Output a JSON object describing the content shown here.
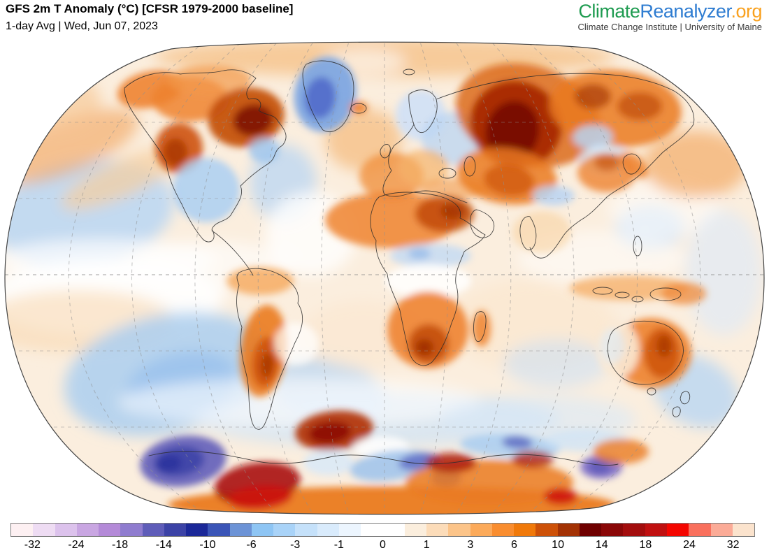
{
  "header": {
    "title": "GFS 2m T Anomaly (°C) [CFSR 1979-2000 baseline]",
    "subtitle": "1-day Avg | Wed, Jun 07, 2023"
  },
  "logo": {
    "part1": "Climate",
    "part2": "Reanalyzer",
    "part3": ".org",
    "tagline": "Climate Change Institute | University of Maine",
    "colors": {
      "part1": "#1e9b50",
      "part2": "#2e7cd1",
      "part3": "#f9a11f"
    }
  },
  "colorbar": {
    "unit": "°C",
    "ticks": [
      "-32",
      "-24",
      "-18",
      "-14",
      "-10",
      "-6",
      "-3",
      "-1",
      "0",
      "1",
      "3",
      "6",
      "10",
      "14",
      "18",
      "24",
      "32"
    ],
    "segments": [
      "#fdf0f2",
      "#eedcf3",
      "#dcc2ec",
      "#c9a6e2",
      "#b48ad8",
      "#8f7ccf",
      "#5f5db9",
      "#3c43a6",
      "#1b2898",
      "#3b55b7",
      "#6c93d6",
      "#8ec5f4",
      "#a9d3f8",
      "#c5e1fa",
      "#d9ebfc",
      "#ecf5fe",
      "#ffffff",
      "#ffffff",
      "#fbeedd",
      "#fcdcb9",
      "#fcc489",
      "#fcaa5a",
      "#f98d2f",
      "#f0790a",
      "#cd5108",
      "#a33204",
      "#6f0000",
      "#8a0707",
      "#a30d0d",
      "#c01010",
      "#f40600",
      "#f9705d",
      "#fbab97",
      "#fbe3cd"
    ],
    "border_color": "#7d7d7d"
  },
  "map": {
    "base_color": "#fbeede",
    "grid_color": "#8f8f8f",
    "coastline_color": "#2b2b2b",
    "outline_color": "#444444",
    "anomaly_blobs": [
      [
        120,
        305,
        130,
        75,
        -10,
        "#b9d6f3",
        0.85,
        "b"
      ],
      [
        95,
        210,
        110,
        38,
        -22,
        "#f2a45c",
        0.6,
        "b"
      ],
      [
        175,
        255,
        95,
        26,
        -24,
        "#f7cf9e",
        0.7,
        "b"
      ],
      [
        60,
        145,
        85,
        45,
        0,
        "#f6c490",
        0.6,
        "b"
      ],
      [
        150,
        425,
        170,
        55,
        0,
        "#ffffff",
        0.9,
        "b"
      ],
      [
        110,
        460,
        140,
        45,
        0,
        "#f8d9b2",
        0.6,
        "b"
      ],
      [
        150,
        372,
        160,
        30,
        0,
        "#ffffff",
        0.7,
        "b"
      ],
      [
        240,
        535,
        150,
        85,
        -12,
        "#abcff0",
        0.85,
        "b"
      ],
      [
        260,
        550,
        80,
        45,
        -12,
        "#8fbbec",
        0.6,
        "b"
      ],
      [
        405,
        262,
        48,
        55,
        0,
        "#b9d6f3",
        0.75,
        "b"
      ],
      [
        445,
        335,
        65,
        60,
        0,
        "#ffffff",
        0.8,
        "b"
      ],
      [
        300,
        380,
        120,
        35,
        0,
        "#ffffff",
        0.6,
        "b"
      ],
      [
        470,
        560,
        85,
        45,
        12,
        "#b5d4f1",
        0.75,
        "b"
      ],
      [
        540,
        600,
        260,
        40,
        0,
        "#cde3f7",
        0.7,
        "b"
      ],
      [
        430,
        575,
        260,
        35,
        0,
        "#ffffff",
        0.6,
        "b"
      ],
      [
        770,
        600,
        140,
        35,
        0,
        "#d8e9f9",
        0.6,
        "b"
      ],
      [
        760,
        465,
        120,
        65,
        0,
        "#fbe6cc",
        0.6,
        "b"
      ],
      [
        795,
        520,
        75,
        35,
        0,
        "#cae0f6",
        0.55,
        "b"
      ],
      [
        930,
        325,
        50,
        32,
        0,
        "#c8def5",
        0.75,
        "b"
      ],
      [
        860,
        370,
        120,
        40,
        0,
        "#ffffff",
        0.5,
        "b"
      ],
      [
        950,
        300,
        80,
        40,
        0,
        "#ffffff",
        0.5,
        "b"
      ],
      [
        995,
        560,
        65,
        48,
        28,
        "#b9d6f3",
        0.8,
        "b"
      ],
      [
        995,
        235,
        75,
        48,
        0,
        "#f3a65c",
        0.65,
        "b"
      ],
      [
        550,
        82,
        330,
        28,
        0,
        "#f5bc7d",
        0.7,
        "b"
      ],
      [
        520,
        88,
        60,
        18,
        0,
        "#ffffff",
        0.6,
        "b"
      ],
      [
        520,
        200,
        55,
        45,
        0,
        "#f4b06a",
        0.6,
        "b"
      ],
      [
        1035,
        390,
        55,
        90,
        0,
        "#dce9fa",
        0.6,
        "b"
      ],
      [
        520,
        480,
        90,
        50,
        0,
        "#fbe6cc",
        0.5,
        "b"
      ],
      [
        215,
        128,
        48,
        26,
        -12,
        "#ee8330",
        0.9,
        "s"
      ],
      [
        272,
        142,
        55,
        32,
        0,
        "#ee8330",
        0.85,
        "s"
      ],
      [
        300,
        115,
        60,
        22,
        0,
        "#f2994a",
        0.7,
        "s"
      ],
      [
        352,
        168,
        55,
        42,
        -10,
        "#c24a05",
        0.9,
        "s"
      ],
      [
        362,
        172,
        28,
        22,
        -10,
        "#7a0b00",
        0.85,
        "s"
      ],
      [
        256,
        212,
        34,
        36,
        0,
        "#cd5108",
        0.9,
        "s"
      ],
      [
        251,
        218,
        17,
        20,
        0,
        "#a33204",
        0.7,
        "s"
      ],
      [
        295,
        272,
        48,
        46,
        0,
        "#aacff2",
        0.85,
        "s"
      ],
      [
        378,
        215,
        22,
        18,
        0,
        "#9cc4ee",
        0.8,
        "s"
      ],
      [
        465,
        135,
        44,
        54,
        12,
        "#7ea6e2",
        0.95,
        "s"
      ],
      [
        458,
        140,
        22,
        30,
        8,
        "#4d66c8",
        0.85,
        "s"
      ],
      [
        513,
        154,
        13,
        9,
        0,
        "#ee8330",
        0.9,
        "s"
      ],
      [
        602,
        165,
        36,
        36,
        0,
        "#cfe0f6",
        0.9,
        "s"
      ],
      [
        648,
        198,
        45,
        38,
        0,
        "#b9d4f2",
        0.75,
        "s"
      ],
      [
        560,
        252,
        46,
        34,
        0,
        "#f0913d",
        0.8,
        "s"
      ],
      [
        606,
        240,
        36,
        26,
        0,
        "#f5b36b",
        0.7,
        "s"
      ],
      [
        650,
        270,
        50,
        15,
        0,
        "#f2994a",
        0.6,
        "s"
      ],
      [
        755,
        165,
        105,
        72,
        15,
        "#d96114",
        0.8,
        "s"
      ],
      [
        738,
        178,
        66,
        62,
        20,
        "#a82a02",
        0.95,
        "s"
      ],
      [
        733,
        188,
        38,
        44,
        15,
        "#740300",
        0.9,
        "s"
      ],
      [
        880,
        155,
        95,
        55,
        5,
        "#ea7a20",
        0.85,
        "s"
      ],
      [
        848,
        138,
        26,
        18,
        0,
        "#a83a08",
        0.7,
        "s"
      ],
      [
        915,
        152,
        32,
        20,
        0,
        "#bb4406",
        0.65,
        "s"
      ],
      [
        848,
        196,
        28,
        17,
        0,
        "#b9d4f2",
        0.85,
        "s"
      ],
      [
        865,
        228,
        36,
        22,
        0,
        "#cde1f6",
        0.75,
        "s"
      ],
      [
        725,
        252,
        72,
        40,
        8,
        "#ea7a20",
        0.85,
        "s"
      ],
      [
        728,
        258,
        36,
        22,
        8,
        "#cd5108",
        0.7,
        "s"
      ],
      [
        792,
        280,
        30,
        14,
        0,
        "#b9d4f2",
        0.85,
        "s"
      ],
      [
        868,
        247,
        42,
        28,
        0,
        "#ee8330",
        0.8,
        "s"
      ],
      [
        868,
        232,
        18,
        12,
        0,
        "#c24a05",
        0.6,
        "s"
      ],
      [
        907,
        236,
        24,
        13,
        40,
        "#ee8330",
        0.85,
        "s"
      ],
      [
        560,
        315,
        95,
        40,
        0,
        "#ee8330",
        0.85,
        "s"
      ],
      [
        636,
        306,
        42,
        26,
        0,
        "#c24a05",
        0.85,
        "s"
      ],
      [
        648,
        302,
        18,
        12,
        0,
        "#a02d03",
        0.7,
        "s"
      ],
      [
        616,
        366,
        58,
        17,
        0,
        "#c2daf4",
        0.8,
        "s"
      ],
      [
        600,
        363,
        16,
        8,
        0,
        "#8fb5e8",
        0.7,
        "s"
      ],
      [
        612,
        402,
        62,
        24,
        0,
        "#ffffff",
        0.85,
        "s"
      ],
      [
        612,
        472,
        58,
        55,
        0,
        "#ee8330",
        0.9,
        "s"
      ],
      [
        613,
        492,
        29,
        28,
        0,
        "#c24a05",
        0.85,
        "s"
      ],
      [
        607,
        497,
        13,
        12,
        0,
        "#8c2000",
        0.6,
        "s"
      ],
      [
        689,
        470,
        13,
        26,
        0,
        "#ee8330",
        0.85,
        "s"
      ],
      [
        775,
        332,
        42,
        30,
        0,
        "#f8d2a2",
        0.6,
        "s"
      ],
      [
        372,
        402,
        48,
        20,
        0,
        "#f5a659",
        0.8,
        "s"
      ],
      [
        377,
        502,
        33,
        66,
        6,
        "#ea7a20",
        0.9,
        "s"
      ],
      [
        380,
        518,
        19,
        36,
        6,
        "#cd5108",
        0.85,
        "s"
      ],
      [
        382,
        522,
        9,
        18,
        6,
        "#a33204",
        0.75,
        "s"
      ],
      [
        424,
        492,
        32,
        30,
        0,
        "#ffffff",
        0.7,
        "s"
      ],
      [
        932,
        505,
        57,
        50,
        0,
        "#ee8330",
        0.92,
        "s"
      ],
      [
        947,
        505,
        26,
        36,
        0,
        "#cd5108",
        0.85,
        "s"
      ],
      [
        950,
        495,
        11,
        16,
        0,
        "#a33204",
        0.7,
        "s"
      ],
      [
        884,
        500,
        30,
        40,
        0,
        "#f9e9d4",
        0.9,
        "s"
      ],
      [
        876,
        495,
        18,
        25,
        0,
        "#dcebf9",
        0.6,
        "s"
      ],
      [
        900,
        412,
        85,
        18,
        0,
        "#f5a659",
        0.7,
        "s"
      ],
      [
        978,
        420,
        32,
        16,
        0,
        "#ee8330",
        0.7,
        "s"
      ],
      [
        560,
        722,
        320,
        26,
        0,
        "#ea7a20",
        0.95,
        "s"
      ],
      [
        262,
        660,
        62,
        36,
        -8,
        "#5f5db9",
        0.9,
        "s"
      ],
      [
        256,
        660,
        36,
        21,
        -8,
        "#3c43a6",
        0.85,
        "s"
      ],
      [
        242,
        663,
        18,
        12,
        -8,
        "#2a2f9e",
        0.8,
        "s"
      ],
      [
        478,
        616,
        56,
        28,
        -6,
        "#b02c05",
        0.9,
        "s"
      ],
      [
        472,
        619,
        30,
        15,
        -6,
        "#8a0707",
        0.85,
        "s"
      ],
      [
        368,
        692,
        62,
        30,
        -8,
        "#a81208",
        0.9,
        "s"
      ],
      [
        372,
        712,
        46,
        17,
        -5,
        "#cf1010",
        0.85,
        "s"
      ],
      [
        470,
        662,
        36,
        18,
        0,
        "#d8e9f8",
        0.85,
        "s"
      ],
      [
        545,
        640,
        40,
        16,
        0,
        "#ffffff",
        0.8,
        "s"
      ],
      [
        560,
        666,
        60,
        21,
        -8,
        "#9cc2ec",
        0.85,
        "s"
      ],
      [
        600,
        660,
        30,
        12,
        -8,
        "#5560c0",
        0.75,
        "s"
      ],
      [
        638,
        684,
        22,
        12,
        0,
        "#323ca5",
        0.7,
        "s"
      ],
      [
        730,
        638,
        72,
        17,
        3,
        "#a9cdf0",
        0.85,
        "s"
      ],
      [
        740,
        633,
        22,
        9,
        3,
        "#4a55b8",
        0.7,
        "s"
      ],
      [
        700,
        690,
        120,
        32,
        0,
        "#ea7a20",
        0.85,
        "s"
      ],
      [
        645,
        662,
        36,
        14,
        0,
        "#a81208",
        0.8,
        "s"
      ],
      [
        762,
        657,
        30,
        12,
        0,
        "#a81208",
        0.75,
        "s"
      ],
      [
        802,
        710,
        24,
        12,
        0,
        "#cc0f0f",
        0.85,
        "s"
      ],
      [
        838,
        630,
        60,
        16,
        0,
        "#cde3f7",
        0.7,
        "s"
      ],
      [
        860,
        668,
        30,
        17,
        0,
        "#7a6cc8",
        0.9,
        "s"
      ],
      [
        858,
        668,
        16,
        10,
        0,
        "#5a55b5",
        0.8,
        "s"
      ],
      [
        888,
        646,
        40,
        18,
        0,
        "#ea7a20",
        0.8,
        "s"
      ]
    ]
  }
}
